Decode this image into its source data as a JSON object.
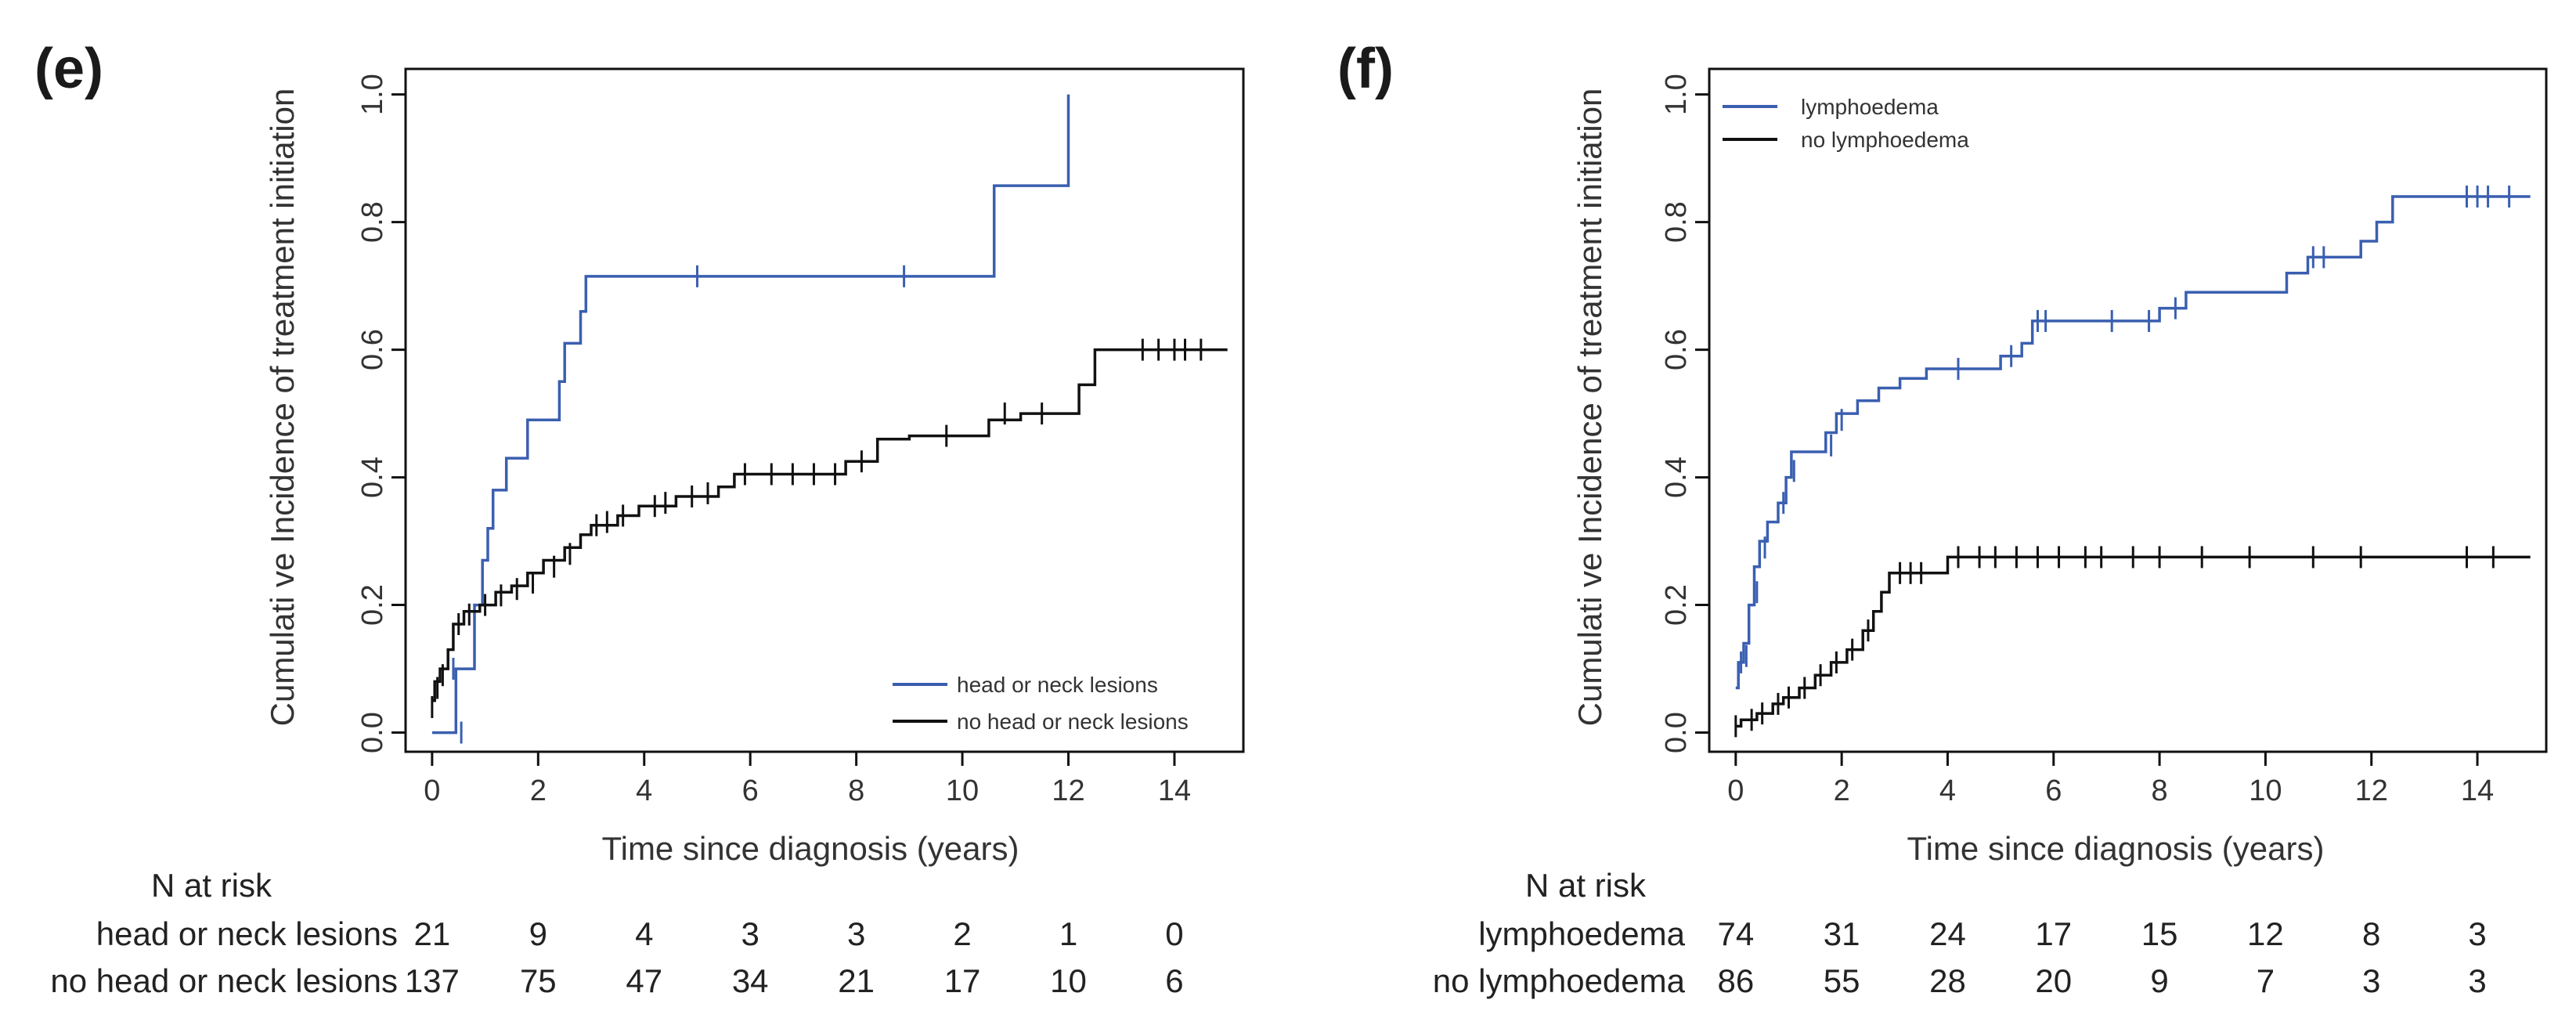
{
  "panels": [
    {
      "label": "(e)",
      "xlabel": "Time since diagnosis (years)",
      "ylabel": "Cumulati ve Incidence of treatment initiation",
      "xticks": [
        "0",
        "2",
        "4",
        "6",
        "8",
        "10",
        "12",
        "14"
      ],
      "yticks": [
        "0.0",
        "0.2",
        "0.4",
        "0.6",
        "0.8",
        "1.0"
      ],
      "legend": [
        "head or neck lesions",
        "no head or neck lesions"
      ],
      "risk_title": "N at risk",
      "risk_rows": [
        {
          "label": "head or neck lesions",
          "values": [
            "21",
            "9",
            "4",
            "3",
            "3",
            "2",
            "1",
            "0"
          ]
        },
        {
          "label": "no head or neck lesions",
          "values": [
            "137",
            "75",
            "47",
            "34",
            "21",
            "17",
            "10",
            "6"
          ]
        }
      ]
    },
    {
      "label": "(f)",
      "xlabel": "Time since diagnosis (years)",
      "ylabel": "Cumulati ve Incidence of treatment initiation",
      "xticks": [
        "0",
        "2",
        "4",
        "6",
        "8",
        "10",
        "12",
        "14"
      ],
      "yticks": [
        "0.0",
        "0.2",
        "0.4",
        "0.6",
        "0.8",
        "1.0"
      ],
      "legend": [
        "lymphoedema",
        "no lymphoedema"
      ],
      "risk_title": "N at risk",
      "risk_rows": [
        {
          "label": "lymphoedema",
          "values": [
            "74",
            "31",
            "24",
            "17",
            "15",
            "12",
            "8",
            "3"
          ]
        },
        {
          "label": "no lymphoedema",
          "values": [
            "86",
            "55",
            "28",
            "20",
            "9",
            "7",
            "3",
            "3"
          ]
        }
      ]
    }
  ],
  "colors": {
    "blue": "#3a5fb0",
    "black": "#111111"
  },
  "chart_data": [
    {
      "type": "line",
      "title": "(e)",
      "xlabel": "Time since diagnosis (years)",
      "ylabel": "Cumulati ve Incidence of treatment initiation",
      "xlim": [
        -0.5,
        15.3
      ],
      "ylim": [
        -0.03,
        1.04
      ],
      "legend_position": "bottom-right",
      "series": [
        {
          "name": "head or neck lesions",
          "color": "#3a5fb0",
          "step": [
            [
              0,
              0
            ],
            [
              0.45,
              0
            ],
            [
              0.45,
              0.1
            ],
            [
              0.8,
              0.1
            ],
            [
              0.8,
              0.2
            ],
            [
              0.95,
              0.2
            ],
            [
              0.95,
              0.27
            ],
            [
              1.05,
              0.27
            ],
            [
              1.05,
              0.32
            ],
            [
              1.15,
              0.32
            ],
            [
              1.15,
              0.38
            ],
            [
              1.4,
              0.38
            ],
            [
              1.4,
              0.43
            ],
            [
              1.8,
              0.43
            ],
            [
              1.8,
              0.49
            ],
            [
              2.4,
              0.49
            ],
            [
              2.4,
              0.55
            ],
            [
              2.5,
              0.55
            ],
            [
              2.5,
              0.61
            ],
            [
              2.8,
              0.61
            ],
            [
              2.8,
              0.66
            ],
            [
              2.9,
              0.66
            ],
            [
              2.9,
              0.715
            ],
            [
              10.6,
              0.715
            ],
            [
              10.6,
              0.857
            ],
            [
              12.0,
              0.857
            ],
            [
              12.0,
              1.0
            ]
          ],
          "censor": [
            [
              0.4,
              0.1
            ],
            [
              0.55,
              0.0
            ],
            [
              5.0,
              0.715
            ],
            [
              8.9,
              0.715
            ]
          ]
        },
        {
          "name": "no head or neck lesions",
          "color": "#111111",
          "step": [
            [
              0,
              0.05
            ],
            [
              0.05,
              0.05
            ],
            [
              0.05,
              0.08
            ],
            [
              0.15,
              0.08
            ],
            [
              0.15,
              0.1
            ],
            [
              0.3,
              0.1
            ],
            [
              0.3,
              0.13
            ],
            [
              0.4,
              0.13
            ],
            [
              0.4,
              0.17
            ],
            [
              0.6,
              0.17
            ],
            [
              0.6,
              0.19
            ],
            [
              0.9,
              0.19
            ],
            [
              0.9,
              0.2
            ],
            [
              1.2,
              0.2
            ],
            [
              1.2,
              0.22
            ],
            [
              1.5,
              0.22
            ],
            [
              1.5,
              0.23
            ],
            [
              1.8,
              0.23
            ],
            [
              1.8,
              0.25
            ],
            [
              2.1,
              0.25
            ],
            [
              2.1,
              0.27
            ],
            [
              2.5,
              0.27
            ],
            [
              2.5,
              0.29
            ],
            [
              2.8,
              0.29
            ],
            [
              2.8,
              0.31
            ],
            [
              3.0,
              0.31
            ],
            [
              3.0,
              0.325
            ],
            [
              3.5,
              0.325
            ],
            [
              3.5,
              0.34
            ],
            [
              3.9,
              0.34
            ],
            [
              3.9,
              0.355
            ],
            [
              4.6,
              0.355
            ],
            [
              4.6,
              0.37
            ],
            [
              5.4,
              0.37
            ],
            [
              5.4,
              0.385
            ],
            [
              5.7,
              0.385
            ],
            [
              5.7,
              0.405
            ],
            [
              7.8,
              0.405
            ],
            [
              7.8,
              0.425
            ],
            [
              8.4,
              0.425
            ],
            [
              8.4,
              0.46
            ],
            [
              9.0,
              0.46
            ],
            [
              9.0,
              0.465
            ],
            [
              10.5,
              0.465
            ],
            [
              10.5,
              0.49
            ],
            [
              11.1,
              0.49
            ],
            [
              11.1,
              0.5
            ],
            [
              12.2,
              0.5
            ],
            [
              12.2,
              0.545
            ],
            [
              12.5,
              0.545
            ],
            [
              12.5,
              0.6
            ],
            [
              15.0,
              0.6
            ]
          ],
          "censor": [
            [
              0.0,
              0.04
            ],
            [
              0.1,
              0.07
            ],
            [
              0.2,
              0.09
            ],
            [
              0.5,
              0.17
            ],
            [
              0.7,
              0.185
            ],
            [
              1.0,
              0.2
            ],
            [
              1.3,
              0.215
            ],
            [
              1.6,
              0.225
            ],
            [
              1.9,
              0.235
            ],
            [
              2.3,
              0.26
            ],
            [
              2.6,
              0.28
            ],
            [
              3.1,
              0.325
            ],
            [
              3.3,
              0.33
            ],
            [
              3.6,
              0.34
            ],
            [
              4.2,
              0.355
            ],
            [
              4.4,
              0.36
            ],
            [
              4.9,
              0.37
            ],
            [
              5.2,
              0.375
            ],
            [
              5.9,
              0.405
            ],
            [
              6.4,
              0.405
            ],
            [
              6.8,
              0.405
            ],
            [
              7.2,
              0.405
            ],
            [
              7.6,
              0.405
            ],
            [
              8.1,
              0.425
            ],
            [
              9.7,
              0.465
            ],
            [
              10.8,
              0.5
            ],
            [
              11.5,
              0.5
            ],
            [
              13.4,
              0.6
            ],
            [
              13.7,
              0.6
            ],
            [
              14.0,
              0.6
            ],
            [
              14.2,
              0.6
            ],
            [
              14.5,
              0.6
            ]
          ]
        }
      ]
    },
    {
      "type": "line",
      "title": "(f)",
      "xlabel": "Time since diagnosis (years)",
      "ylabel": "Cumulati ve Incidence of treatment initiation",
      "xlim": [
        -0.5,
        15.3
      ],
      "ylim": [
        -0.03,
        1.04
      ],
      "legend_position": "top-left",
      "series": [
        {
          "name": "lymphoedema",
          "color": "#3a5fb0",
          "step": [
            [
              0,
              0.07
            ],
            [
              0.05,
              0.07
            ],
            [
              0.05,
              0.11
            ],
            [
              0.15,
              0.11
            ],
            [
              0.15,
              0.14
            ],
            [
              0.25,
              0.14
            ],
            [
              0.25,
              0.2
            ],
            [
              0.35,
              0.2
            ],
            [
              0.35,
              0.26
            ],
            [
              0.45,
              0.26
            ],
            [
              0.45,
              0.3
            ],
            [
              0.6,
              0.3
            ],
            [
              0.6,
              0.33
            ],
            [
              0.8,
              0.33
            ],
            [
              0.8,
              0.36
            ],
            [
              0.95,
              0.36
            ],
            [
              0.95,
              0.4
            ],
            [
              1.05,
              0.4
            ],
            [
              1.05,
              0.44
            ],
            [
              1.7,
              0.44
            ],
            [
              1.7,
              0.47
            ],
            [
              1.9,
              0.47
            ],
            [
              1.9,
              0.5
            ],
            [
              2.3,
              0.5
            ],
            [
              2.3,
              0.52
            ],
            [
              2.7,
              0.52
            ],
            [
              2.7,
              0.54
            ],
            [
              3.1,
              0.54
            ],
            [
              3.1,
              0.555
            ],
            [
              3.6,
              0.555
            ],
            [
              3.6,
              0.57
            ],
            [
              5.0,
              0.57
            ],
            [
              5.0,
              0.59
            ],
            [
              5.4,
              0.59
            ],
            [
              5.4,
              0.61
            ],
            [
              5.6,
              0.61
            ],
            [
              5.6,
              0.645
            ],
            [
              8.0,
              0.645
            ],
            [
              8.0,
              0.665
            ],
            [
              8.5,
              0.665
            ],
            [
              8.5,
              0.69
            ],
            [
              10.4,
              0.69
            ],
            [
              10.4,
              0.72
            ],
            [
              10.8,
              0.72
            ],
            [
              10.8,
              0.745
            ],
            [
              11.8,
              0.745
            ],
            [
              11.8,
              0.77
            ],
            [
              12.1,
              0.77
            ],
            [
              12.1,
              0.8
            ],
            [
              12.4,
              0.8
            ],
            [
              12.4,
              0.84
            ],
            [
              15.0,
              0.84
            ]
          ],
          "censor": [
            [
              0.1,
              0.11
            ],
            [
              0.2,
              0.12
            ],
            [
              0.4,
              0.22
            ],
            [
              0.55,
              0.29
            ],
            [
              0.9,
              0.36
            ],
            [
              1.1,
              0.41
            ],
            [
              1.8,
              0.45
            ],
            [
              2.0,
              0.49
            ],
            [
              4.2,
              0.57
            ],
            [
              5.2,
              0.59
            ],
            [
              5.7,
              0.645
            ],
            [
              5.85,
              0.645
            ],
            [
              7.1,
              0.645
            ],
            [
              7.8,
              0.645
            ],
            [
              8.3,
              0.665
            ],
            [
              10.9,
              0.745
            ],
            [
              11.1,
              0.745
            ],
            [
              13.8,
              0.84
            ],
            [
              14.0,
              0.84
            ],
            [
              14.2,
              0.84
            ],
            [
              14.6,
              0.84
            ]
          ]
        },
        {
          "name": "no lymphoedema",
          "color": "#111111",
          "step": [
            [
              0,
              0.01
            ],
            [
              0.1,
              0.01
            ],
            [
              0.1,
              0.02
            ],
            [
              0.4,
              0.02
            ],
            [
              0.4,
              0.03
            ],
            [
              0.7,
              0.03
            ],
            [
              0.7,
              0.045
            ],
            [
              0.9,
              0.045
            ],
            [
              0.9,
              0.055
            ],
            [
              1.2,
              0.055
            ],
            [
              1.2,
              0.07
            ],
            [
              1.5,
              0.07
            ],
            [
              1.5,
              0.09
            ],
            [
              1.8,
              0.09
            ],
            [
              1.8,
              0.11
            ],
            [
              2.1,
              0.11
            ],
            [
              2.1,
              0.13
            ],
            [
              2.4,
              0.13
            ],
            [
              2.4,
              0.16
            ],
            [
              2.6,
              0.16
            ],
            [
              2.6,
              0.19
            ],
            [
              2.75,
              0.19
            ],
            [
              2.75,
              0.22
            ],
            [
              2.9,
              0.22
            ],
            [
              2.9,
              0.25
            ],
            [
              4.0,
              0.25
            ],
            [
              4.0,
              0.275
            ],
            [
              15.0,
              0.275
            ]
          ],
          "censor": [
            [
              0.0,
              0.01
            ],
            [
              0.3,
              0.02
            ],
            [
              0.5,
              0.03
            ],
            [
              0.8,
              0.045
            ],
            [
              1.0,
              0.055
            ],
            [
              1.3,
              0.07
            ],
            [
              1.6,
              0.09
            ],
            [
              1.9,
              0.11
            ],
            [
              2.2,
              0.13
            ],
            [
              2.5,
              0.16
            ],
            [
              3.1,
              0.25
            ],
            [
              3.3,
              0.25
            ],
            [
              3.5,
              0.25
            ],
            [
              4.2,
              0.275
            ],
            [
              4.6,
              0.275
            ],
            [
              4.9,
              0.275
            ],
            [
              5.3,
              0.275
            ],
            [
              5.7,
              0.275
            ],
            [
              6.1,
              0.275
            ],
            [
              6.6,
              0.275
            ],
            [
              6.9,
              0.275
            ],
            [
              7.5,
              0.275
            ],
            [
              8.0,
              0.275
            ],
            [
              8.8,
              0.275
            ],
            [
              9.7,
              0.275
            ],
            [
              10.9,
              0.275
            ],
            [
              11.8,
              0.275
            ],
            [
              13.8,
              0.275
            ],
            [
              14.3,
              0.275
            ]
          ]
        }
      ]
    }
  ]
}
